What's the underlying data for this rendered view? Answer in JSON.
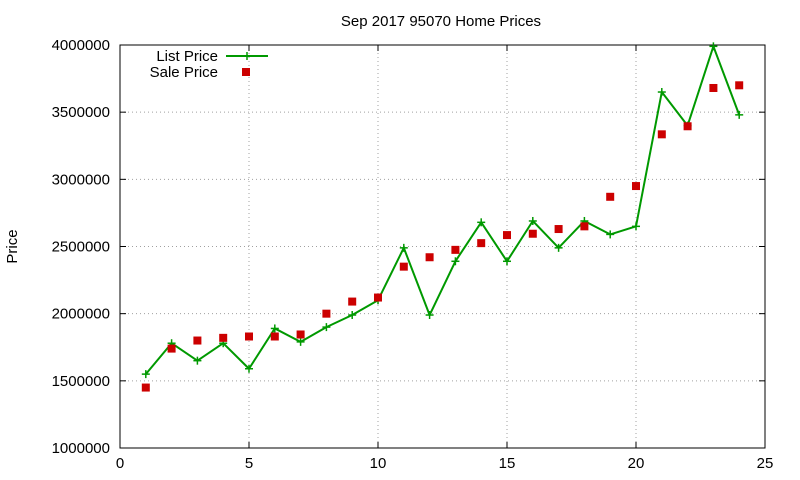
{
  "chart_data": {
    "type": "line",
    "title": "Sep 2017 95070 Home Prices",
    "xlabel": "",
    "ylabel": "Price",
    "xlim": [
      0,
      25
    ],
    "ylim": [
      1000000,
      4000000
    ],
    "xticks": [
      "0",
      "5",
      "10",
      "15",
      "20",
      "25"
    ],
    "yticks": [
      "1000000",
      "1500000",
      "2000000",
      "2500000",
      "3000000",
      "3500000",
      "4000000"
    ],
    "grid": true,
    "legend_position": "top-left",
    "series": [
      {
        "name": "List Price",
        "style": "line-plus",
        "color": "#009900",
        "x": [
          1,
          2,
          3,
          4,
          5,
          6,
          7,
          8,
          9,
          10,
          11,
          12,
          13,
          14,
          15,
          16,
          17,
          18,
          19,
          20,
          21,
          22,
          23,
          24
        ],
        "values": [
          1550000,
          1780000,
          1650000,
          1780000,
          1590000,
          1890000,
          1790000,
          1900000,
          1990000,
          2100000,
          2490000,
          1990000,
          2390000,
          2680000,
          2390000,
          2690000,
          2490000,
          2690000,
          2590000,
          2650000,
          3650000,
          3400000,
          3990000,
          3480000
        ]
      },
      {
        "name": "Sale Price",
        "style": "square-markers",
        "color": "#cc0000",
        "x": [
          1,
          2,
          3,
          4,
          5,
          6,
          7,
          8,
          9,
          10,
          11,
          12,
          13,
          14,
          15,
          16,
          17,
          18,
          19,
          20,
          21,
          22,
          23,
          24
        ],
        "values": [
          1450000,
          1740000,
          1800000,
          1820000,
          1830000,
          1830000,
          1845000,
          2000000,
          2090000,
          2120000,
          2350000,
          2420000,
          2475000,
          2525000,
          2585000,
          2595000,
          2630000,
          2650000,
          2870000,
          2950000,
          3335000,
          3395000,
          3680000,
          3700000
        ]
      }
    ]
  }
}
